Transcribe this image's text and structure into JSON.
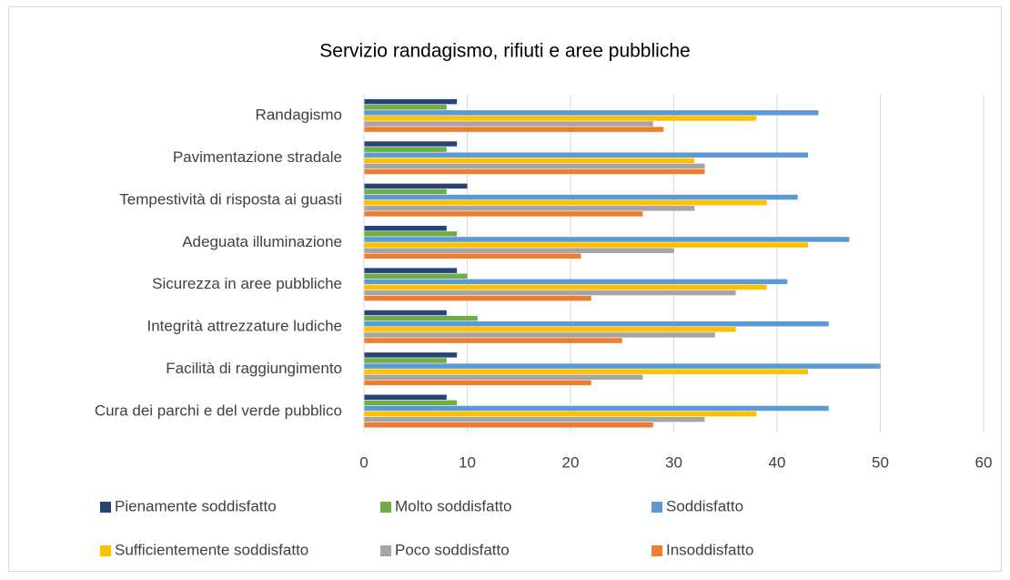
{
  "chart_data": {
    "type": "hbar",
    "title": "Servizio randagismo, rifiuti e aree pubbliche",
    "categories": [
      "Randagismo",
      "Pavimentazione stradale",
      "Tempestività di risposta ai guasti",
      "Adeguata illuminazione",
      "Sicurezza in aree pubbliche",
      "Integrità attrezzature ludiche",
      "Facilità di raggiungimento",
      "Cura dei parchi e del verde pubblico"
    ],
    "series": [
      {
        "name": "Pienamente soddisfatto",
        "color": "#264478",
        "values": [
          9,
          9,
          10,
          8,
          9,
          8,
          9,
          8
        ]
      },
      {
        "name": "Molto soddisfatto",
        "color": "#70ad47",
        "values": [
          8,
          8,
          8,
          9,
          10,
          11,
          8,
          9
        ]
      },
      {
        "name": "Soddisfatto",
        "color": "#5b9bd5",
        "values": [
          44,
          43,
          42,
          47,
          41,
          45,
          50,
          45
        ]
      },
      {
        "name": "Sufficientemente soddisfatto",
        "color": "#ffc000",
        "values": [
          38,
          32,
          39,
          43,
          39,
          36,
          43,
          38
        ]
      },
      {
        "name": "Poco soddisfatto",
        "color": "#a5a5a5",
        "values": [
          28,
          33,
          32,
          30,
          36,
          34,
          27,
          33
        ]
      },
      {
        "name": "Insoddisfatto",
        "color": "#ed7d31",
        "values": [
          29,
          33,
          27,
          21,
          22,
          25,
          22,
          28
        ]
      }
    ],
    "xlim": [
      0,
      60
    ],
    "xticks": [
      0,
      10,
      20,
      30,
      40,
      50,
      60
    ],
    "grid": true,
    "legend": "bottom"
  }
}
